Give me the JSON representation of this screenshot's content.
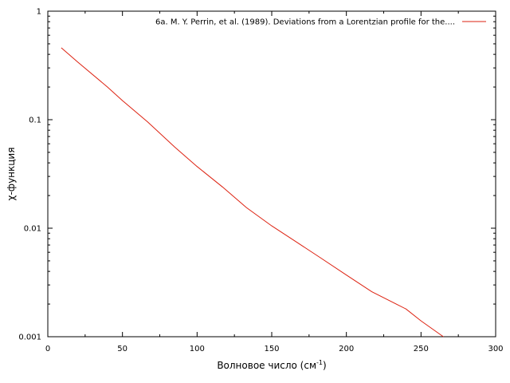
{
  "chart_data": {
    "type": "line",
    "title": "",
    "xlabel": "Волновое число (см",
    "xlabel_sup": "-1",
    "xlabel_suffix": ")",
    "ylabel": "χ-функция",
    "xlim": [
      0,
      300
    ],
    "ylim": [
      0.001,
      1
    ],
    "y_scale": "log",
    "grid": false,
    "legend_position": "top-right",
    "x_ticks": [
      "0",
      "50",
      "100",
      "150",
      "200",
      "250",
      "300"
    ],
    "x_tick_values": [
      0,
      50,
      100,
      150,
      200,
      250,
      300
    ],
    "y_ticks": [
      "0.001",
      "0.01",
      "0.1",
      "1"
    ],
    "y_tick_values": [
      0.001,
      0.01,
      0.1,
      1
    ],
    "series": [
      {
        "name": "6a. M. Y. Perrin, et al. (1989). Deviations from a Lorentzian profile for the....",
        "color": "#dd2211",
        "x": [
          9,
          20,
          40,
          50,
          67,
          85,
          100,
          117,
          133,
          150,
          167,
          183,
          200,
          217,
          240,
          250,
          265
        ],
        "y": [
          0.46,
          0.34,
          0.2,
          0.15,
          0.095,
          0.056,
          0.037,
          0.024,
          0.0155,
          0.0105,
          0.0074,
          0.0053,
          0.0037,
          0.0026,
          0.0018,
          0.0014,
          0.001
        ]
      }
    ]
  }
}
